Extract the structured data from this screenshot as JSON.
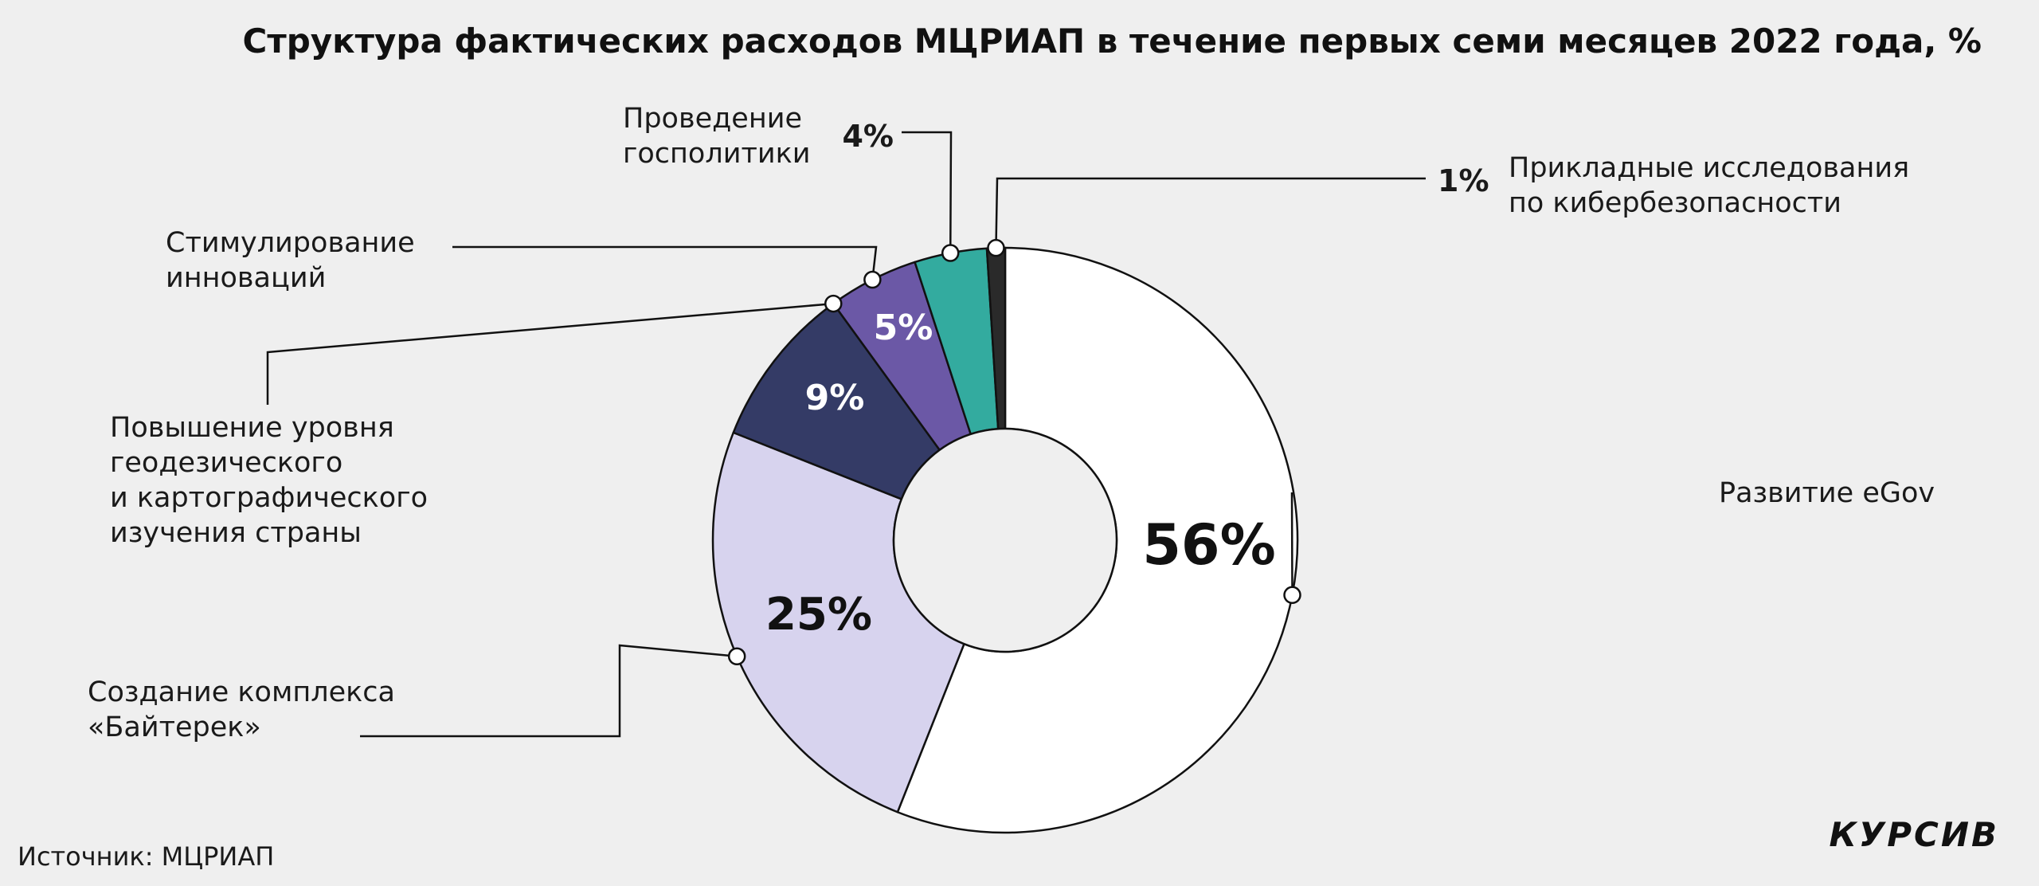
{
  "title": "Структура фактических расходов МЦРИАП в течение первых семи месяцев 2022 года, %",
  "source": "Источник: МЦРИАП",
  "logo": "КУРСИВ",
  "chart_data": {
    "type": "pie",
    "title": "Структура фактических расходов МЦРИАП в течение первых семи месяцев 2022 года, %",
    "unit": "%",
    "slices": [
      {
        "id": "egov",
        "label": "Развитие eGov",
        "lines": [
          "Развитие eGov"
        ],
        "value": 56,
        "value_label": "56%",
        "color": "#ffffff"
      },
      {
        "id": "baiterek",
        "label": "Создание комплекса «Байтерек»",
        "lines": [
          "Создание комплекса",
          "«Байтерек»"
        ],
        "value": 25,
        "value_label": "25%",
        "color": "#d7d3ee"
      },
      {
        "id": "geodesy",
        "label": "Повышение уровня геодезического и картографического изучения страны",
        "lines": [
          "Повышение уровня",
          "геодезического",
          "и картографического",
          "изучения страны"
        ],
        "value": 9,
        "value_label": "9%",
        "color": "#343b66"
      },
      {
        "id": "innovation",
        "label": "Стимулирование инноваций",
        "lines": [
          "Стимулирование",
          "инноваций"
        ],
        "value": 5,
        "value_label": "5%",
        "color": "#6b58a6"
      },
      {
        "id": "policy",
        "label": "Проведение госполитики",
        "lines": [
          "Проведение",
          "госполитики"
        ],
        "value": 4,
        "value_label": "4%",
        "color": "#33ab9f"
      },
      {
        "id": "cyber",
        "label": "Прикладные исследования по кибербезопасности",
        "lines": [
          "Прикладные исследования",
          "по кибербезопасности"
        ],
        "value": 1,
        "value_label": "1%",
        "color": "#2a2a2a"
      }
    ]
  }
}
